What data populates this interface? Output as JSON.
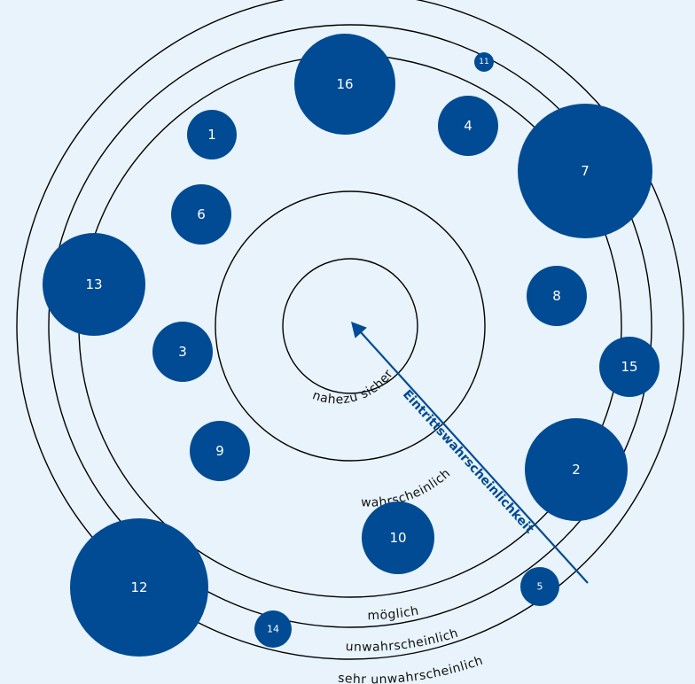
{
  "ring_labels": [
    "nahezu sicher",
    "wahrscheinlich",
    "möglich",
    "unwahrscheinlich",
    "sehr unwahrscheinlich"
  ],
  "axis_label": "Eintrittswahrscheinlichkeit",
  "risks": [
    {
      "id": "1",
      "label": "1"
    },
    {
      "id": "2",
      "label": "2"
    },
    {
      "id": "3",
      "label": "3"
    },
    {
      "id": "4",
      "label": "4"
    },
    {
      "id": "5",
      "label": "5"
    },
    {
      "id": "6",
      "label": "6"
    },
    {
      "id": "7",
      "label": "7"
    },
    {
      "id": "8",
      "label": "8"
    },
    {
      "id": "9",
      "label": "9"
    },
    {
      "id": "10",
      "label": "10"
    },
    {
      "id": "11",
      "label": "11"
    },
    {
      "id": "12",
      "label": "12"
    },
    {
      "id": "13",
      "label": "13"
    },
    {
      "id": "14",
      "label": "14"
    },
    {
      "id": "15",
      "label": "15"
    },
    {
      "id": "16",
      "label": "16"
    }
  ],
  "colors": {
    "background": "#e8f3fb",
    "risk_fill": "#004b93",
    "risk_text": "#ffffff",
    "ring_stroke": "#000000",
    "axis": "#004b93"
  }
}
